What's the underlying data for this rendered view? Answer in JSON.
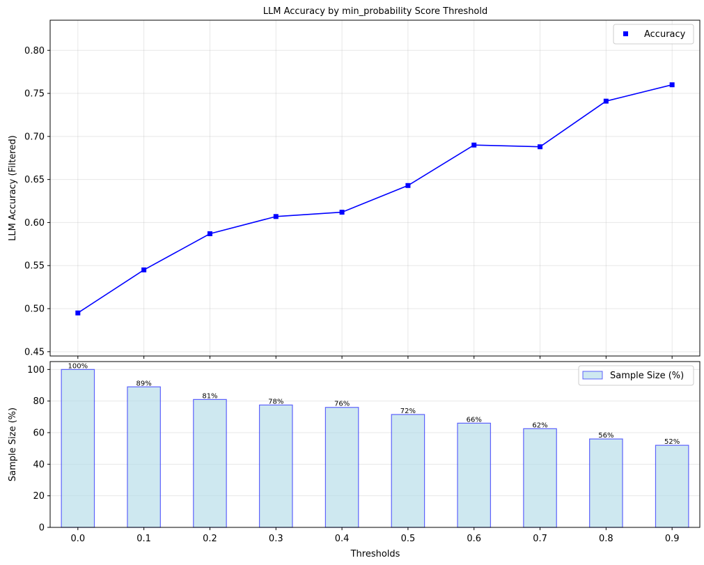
{
  "chart_data": [
    {
      "type": "line",
      "title": "LLM Accuracy by min_probability Score Threshold",
      "ylabel": "LLM Accuracy (Filtered)",
      "xlabel": "",
      "x": [
        0.0,
        0.1,
        0.2,
        0.3,
        0.4,
        0.5,
        0.6,
        0.7,
        0.8,
        0.9
      ],
      "xlim": [
        -0.042,
        0.942
      ],
      "ylim": [
        0.445,
        0.835
      ],
      "yticks": [
        "0.45",
        "0.50",
        "0.55",
        "0.60",
        "0.65",
        "0.70",
        "0.75",
        "0.80"
      ],
      "series": [
        {
          "name": "Accuracy",
          "color": "#0000ff",
          "marker": "square",
          "values": [
            0.495,
            0.545,
            0.587,
            0.607,
            0.612,
            0.643,
            0.69,
            0.688,
            0.741,
            0.76
          ]
        }
      ],
      "grid": true,
      "legend": "top-right"
    },
    {
      "type": "bar",
      "xlabel": "Thresholds",
      "ylabel": "Sample Size (%)",
      "categories": [
        "0.0",
        "0.1",
        "0.2",
        "0.3",
        "0.4",
        "0.5",
        "0.6",
        "0.7",
        "0.8",
        "0.9"
      ],
      "ylim": [
        0,
        105
      ],
      "yticks": [
        "0",
        "20",
        "40",
        "60",
        "80",
        "100"
      ],
      "series": [
        {
          "name": "Sample Size (%)",
          "fill": "#add8e6",
          "edge": "#0000ff",
          "values": [
            100,
            89,
            81,
            77.5,
            76,
            71.5,
            66,
            62.5,
            56,
            52
          ],
          "labels": [
            "100%",
            "89%",
            "81%",
            "78%",
            "76%",
            "72%",
            "66%",
            "62%",
            "56%",
            "52%"
          ]
        }
      ],
      "grid": true,
      "legend": "top-right"
    }
  ]
}
